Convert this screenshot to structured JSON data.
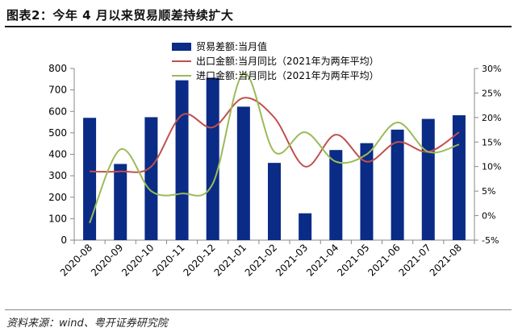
{
  "page_title": "图表2：今年 4 月以来贸易顺差持续扩大",
  "source": "资料来源：wind、粤开证券研究院",
  "colors": {
    "bar": "#0a2b86",
    "export": "#c0504d",
    "import": "#9bbb59",
    "axis": "#888888"
  },
  "chart_data": {
    "type": "bar",
    "categories": [
      "2020-08",
      "2020-09",
      "2020-10",
      "2020-11",
      "2020-12",
      "2021-01",
      "2021-02",
      "2021-03",
      "2021-04",
      "2021-05",
      "2021-06",
      "2021-07",
      "2021-08"
    ],
    "left_axis": {
      "min": 0,
      "max": 800,
      "ticks": [
        0,
        100,
        200,
        300,
        400,
        500,
        600,
        700,
        800
      ],
      "tick_labels": [
        "0",
        "100",
        "200",
        "300",
        "400",
        "500",
        "600",
        "700",
        "800"
      ]
    },
    "right_axis": {
      "min": -5,
      "max": 30,
      "ticks": [
        -5,
        0,
        5,
        10,
        15,
        20,
        25,
        30
      ],
      "tick_labels": [
        "-5%",
        "0%",
        "5%",
        "10%",
        "15%",
        "20%",
        "25%",
        "30%"
      ]
    },
    "series": [
      {
        "name": "贸易差额:当月值",
        "type": "bar",
        "axis": "left",
        "values": [
          570,
          355,
          573,
          745,
          757,
          622,
          360,
          125,
          420,
          452,
          515,
          565,
          582
        ]
      },
      {
        "name": "出口金额:当月同比（2021年为两年平均）",
        "type": "line",
        "axis": "right",
        "values": [
          9.0,
          9.0,
          10.0,
          20.5,
          18.0,
          24.0,
          20.0,
          10.0,
          16.5,
          11.0,
          15.0,
          13.0,
          17.0
        ]
      },
      {
        "name": "进口金额:当月同比（2021年为两年平均）",
        "type": "line",
        "axis": "right",
        "values": [
          -1.5,
          13.5,
          5.0,
          4.5,
          6.5,
          29.0,
          13.0,
          17.0,
          11.0,
          12.5,
          19.0,
          13.0,
          14.5
        ]
      }
    ],
    "legend_position": "top-center"
  }
}
